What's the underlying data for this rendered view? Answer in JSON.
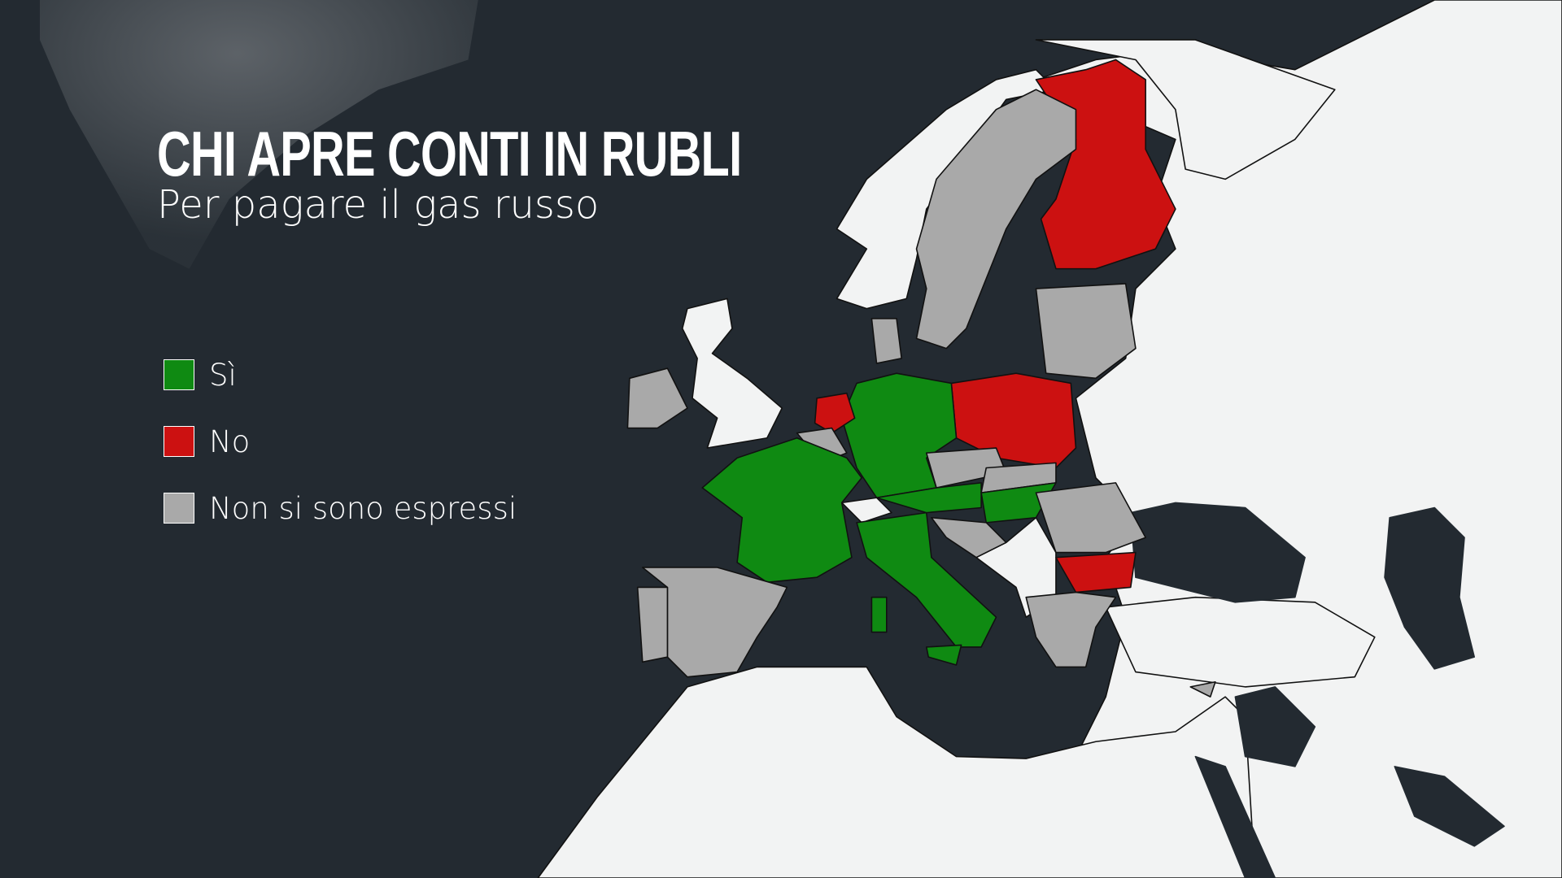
{
  "header": {
    "title": "CHI APRE CONTI IN RUBLI",
    "subtitle": "Per pagare il gas russo"
  },
  "legend": [
    {
      "key": "yes",
      "label": "Sì",
      "color": "#0f8a12"
    },
    {
      "key": "no",
      "label": "No",
      "color": "#cc1111"
    },
    {
      "key": "none",
      "label": "Non si sono espressi",
      "color": "#a9a9a9"
    }
  ],
  "colors": {
    "sea": "#232a31",
    "other_land": "#f2f3f3",
    "border": "#111111"
  },
  "regions": {
    "finland": "no",
    "sweden": "none",
    "denmark": "none",
    "baltics": "none",
    "poland": "no",
    "germany": "yes",
    "netherlands": "no",
    "belgium": "none",
    "france": "yes",
    "italy": "yes",
    "sicily": "yes",
    "sardinia": "yes",
    "austria": "yes",
    "czechia": "none",
    "slovakia": "none",
    "hungary": "yes",
    "croatia": "none",
    "romania": "none",
    "bulgaria": "no",
    "greece": "none",
    "spain": "none",
    "portugal": "none",
    "ireland": "none",
    "cyprus": "none"
  }
}
